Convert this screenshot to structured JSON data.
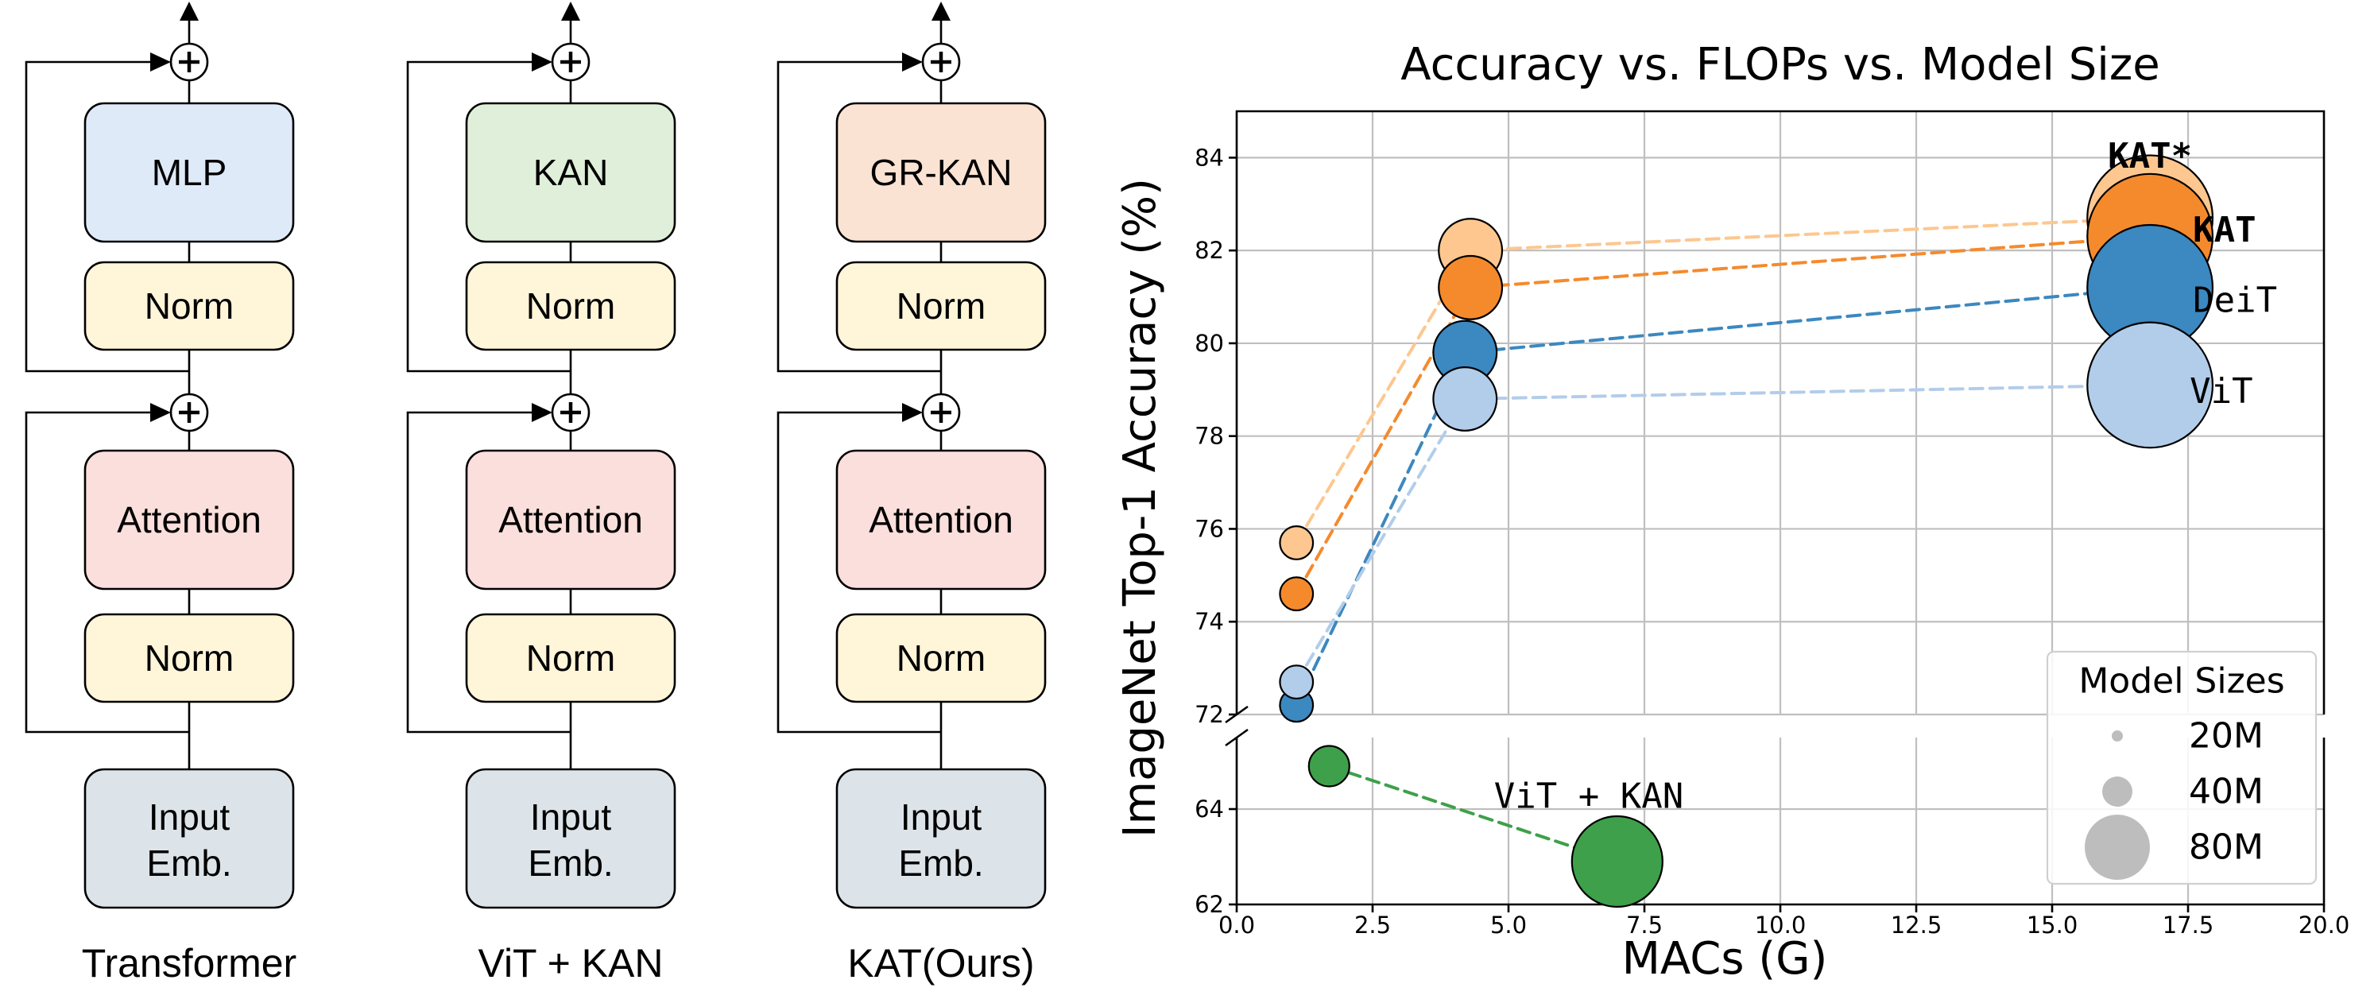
{
  "diagrams": [
    {
      "caption": "Transformer",
      "blocks": {
        "top": "MLP",
        "norm_top": "Norm",
        "attention": "Attention",
        "norm_bottom": "Norm",
        "input_l1": "Input",
        "input_l2": "Emb."
      },
      "top_color": "#dfeaf9"
    },
    {
      "caption": "ViT + KAN",
      "blocks": {
        "top": "KAN",
        "norm_top": "Norm",
        "attention": "Attention",
        "norm_bottom": "Norm",
        "input_l1": "Input",
        "input_l2": "Emb."
      },
      "top_color": "#e0efd9"
    },
    {
      "caption": "KAT(Ours)",
      "blocks": {
        "top": "GR-KAN",
        "norm_top": "Norm",
        "attention": "Attention",
        "norm_bottom": "Norm",
        "input_l1": "Input",
        "input_l2": "Emb."
      },
      "top_color": "#fbe3d4"
    }
  ],
  "colors": {
    "norm": "#fff5d9",
    "attention": "#fadfdc",
    "input": "#dde4e9"
  },
  "chart_data": {
    "type": "scatter",
    "title": "Accuracy vs. FLOPs vs. Model Size",
    "xlabel": "MACs (G)",
    "ylabel": "ImageNet Top-1 Accuracy (%)",
    "xlim": [
      0,
      20
    ],
    "ylim_upper": [
      72,
      85
    ],
    "ylim_lower": [
      62,
      65.5
    ],
    "broken_y_axis": true,
    "x_ticks": [
      "0.0",
      "2.5",
      "5.0",
      "7.5",
      "10.0",
      "12.5",
      "15.0",
      "17.5",
      "20.0"
    ],
    "y_ticks_upper": [
      "72",
      "74",
      "76",
      "78",
      "80",
      "82",
      "84"
    ],
    "y_ticks_lower": [
      "62",
      "64"
    ],
    "grid": true,
    "series": [
      {
        "name": "KAT*",
        "color": "#fdc78f",
        "points": [
          {
            "x": 1.1,
            "y": 75.7,
            "size": 6
          },
          {
            "x": 4.3,
            "y": 82.0,
            "size": 22
          },
          {
            "x": 16.8,
            "y": 82.7,
            "size": 86
          }
        ]
      },
      {
        "name": "KAT",
        "color": "#f58a2d",
        "points": [
          {
            "x": 1.1,
            "y": 74.6,
            "size": 6
          },
          {
            "x": 4.3,
            "y": 81.2,
            "size": 22
          },
          {
            "x": 16.8,
            "y": 82.3,
            "size": 86
          }
        ]
      },
      {
        "name": "DeiT",
        "color": "#3c88c0",
        "points": [
          {
            "x": 1.1,
            "y": 72.2,
            "size": 6
          },
          {
            "x": 4.2,
            "y": 79.8,
            "size": 22
          },
          {
            "x": 16.8,
            "y": 81.2,
            "size": 86
          }
        ]
      },
      {
        "name": "ViT",
        "color": "#b2cdea",
        "points": [
          {
            "x": 1.1,
            "y": 72.7,
            "size": 6
          },
          {
            "x": 4.2,
            "y": 78.8,
            "size": 22
          },
          {
            "x": 16.8,
            "y": 79.1,
            "size": 86
          }
        ]
      },
      {
        "name": "ViT + KAN",
        "color": "#3ea04a",
        "points": [
          {
            "x": 1.7,
            "y": 64.9,
            "size": 9
          },
          {
            "x": 7.0,
            "y": 62.9,
            "size": 45
          }
        ]
      }
    ],
    "legend": {
      "title": "Model Sizes",
      "placement": "lower-right",
      "items": [
        {
          "label": "20M",
          "size": 20
        },
        {
          "label": "40M",
          "size": 40
        },
        {
          "label": "80M",
          "size": 80
        }
      ]
    }
  }
}
